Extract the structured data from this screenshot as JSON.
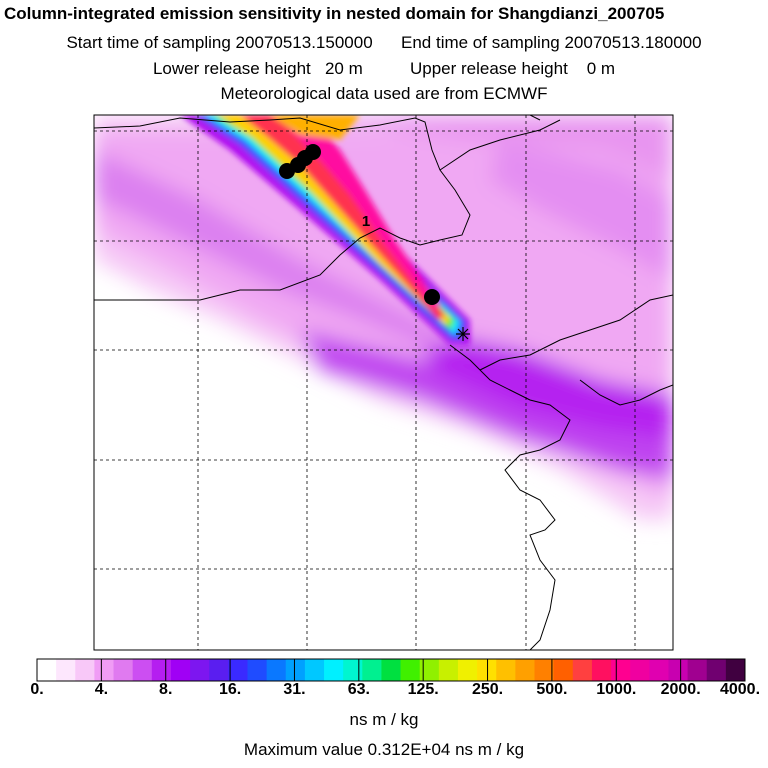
{
  "titles": {
    "main": "Column-integrated emission sensitivity in nested domain for Shangdianzi_200705",
    "start": "Start time of sampling 20070513.150000",
    "end": "End time of sampling 20070513.180000",
    "lower": "Lower release height   20 m",
    "upper": "Upper release height    0 m",
    "met": "Meteorological data used are from ECMWF"
  },
  "map": {
    "plume_label": "1",
    "colorbar_labels": [
      "0.",
      "4.",
      "8.",
      "16.",
      "31.",
      "63.",
      "125.",
      "250.",
      "500.",
      "1000.",
      "2000.",
      "4000."
    ],
    "colors": [
      "#ffffff",
      "#fde7fd",
      "#f8c8f8",
      "#f09cf5",
      "#e07af0",
      "#cc4ef2",
      "#b51ef0",
      "#a000f5",
      "#7d16f0",
      "#5a1ef0",
      "#3a2aff",
      "#1f4cff",
      "#0a78ff",
      "#00a0ff",
      "#00c8ff",
      "#00f0ff",
      "#00f5d0",
      "#00f090",
      "#00e040",
      "#40f000",
      "#90f000",
      "#c8f000",
      "#f0f000",
      "#ffe000",
      "#ffc000",
      "#ffa000",
      "#ff8000",
      "#ff6000",
      "#ff4040",
      "#ff1060",
      "#ff0090",
      "#f000a0",
      "#e000b0",
      "#c800b0",
      "#a00090",
      "#700070",
      "#400040"
    ],
    "units": "ns m / kg",
    "max_value": "Maximum value  0.312E+04 ns m / kg"
  }
}
